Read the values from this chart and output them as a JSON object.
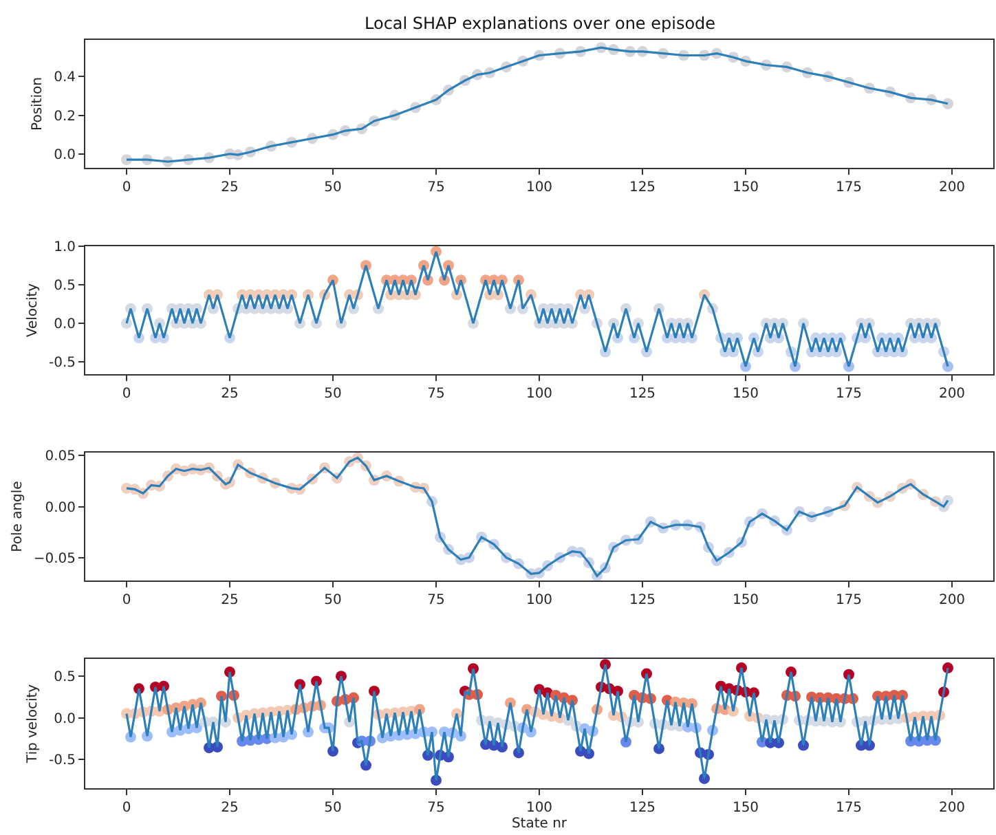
{
  "chart_data": [
    {
      "type": "line",
      "title": "Local SHAP explanations over one episode",
      "ylabel": "Position",
      "xlim": [
        -10,
        210
      ],
      "xticks": [
        0,
        25,
        50,
        75,
        100,
        125,
        150,
        175,
        200
      ],
      "ylim": [
        -0.072,
        0.59
      ],
      "yticks": [
        {
          "value": 0,
          "label": "0.0"
        },
        0.2,
        0.4
      ],
      "marker": "circle",
      "line_style": "solid",
      "series": [
        {
          "x": [
            0,
            5,
            10,
            15,
            20,
            25,
            27,
            30,
            35,
            40,
            45,
            50,
            53,
            57,
            60,
            65,
            70,
            75,
            78,
            82,
            85,
            88,
            92,
            96,
            100,
            105,
            110,
            115,
            118,
            122,
            125,
            130,
            135,
            140,
            143,
            147,
            150,
            155,
            160,
            165,
            170,
            175,
            180,
            185,
            190,
            195,
            199
          ],
          "values": [
            -0.03,
            -0.03,
            -0.04,
            -0.03,
            -0.02,
            0.0,
            -0.005,
            0.01,
            0.04,
            0.06,
            0.08,
            0.1,
            0.12,
            0.13,
            0.17,
            0.2,
            0.24,
            0.28,
            0.33,
            0.38,
            0.41,
            0.42,
            0.45,
            0.48,
            0.51,
            0.52,
            0.53,
            0.55,
            0.54,
            0.53,
            0.53,
            0.52,
            0.51,
            0.51,
            0.52,
            0.5,
            0.48,
            0.46,
            0.45,
            0.42,
            0.4,
            0.37,
            0.34,
            0.32,
            0.29,
            0.28,
            0.26
          ],
          "color": "#2d7fb8",
          "colors": [
            "#d3d5da",
            "#d3d5da",
            "#d3d5da",
            "#d3d5da",
            "#d3d5da",
            "#d3d5da",
            "#d3d5da",
            "#d3d5da",
            "#d3d5da",
            "#d3d5da",
            "#d3d5da",
            "#d3d5da",
            "#d3d5da",
            "#d3d5da",
            "#d3d5da",
            "#d3d5da",
            "#d3d5da",
            "#d3d5da",
            "#d3d5da",
            "#d3d5da",
            "#d3d5da",
            "#d3d5da",
            "#d3d5da",
            "#d3d5da",
            "#d3d5da",
            "#d3d5da",
            "#d3d5da",
            "#d3d5da",
            "#d3d5da",
            "#d3d5da",
            "#d3d5da",
            "#d3d5da",
            "#d3d5da",
            "#d3d5da",
            "#d3d5da",
            "#d3d5da",
            "#d3d5da",
            "#d3d5da",
            "#d3d5da",
            "#d3d5da",
            "#d3d5da",
            "#d3d5da",
            "#d3d5da",
            "#d3d5da",
            "#d3d5da",
            "#d3d5da",
            "#d3d5da"
          ]
        }
      ]
    },
    {
      "type": "line",
      "ylabel": "Velocity",
      "xlim": [
        -10,
        210
      ],
      "xticks": [
        0,
        25,
        50,
        75,
        100,
        125,
        150,
        175,
        200
      ],
      "ylim": [
        -0.66,
        1.0
      ],
      "yticks": [
        -0.5,
        {
          "value": 0,
          "label": "0.0"
        },
        0.5,
        {
          "value": 1,
          "label": "1.0"
        }
      ],
      "marker": "circle",
      "line_style": "solid",
      "series": [
        {
          "x": [
            0,
            1,
            3,
            5,
            7,
            8,
            9,
            11,
            12,
            13,
            14,
            15,
            16,
            17,
            18,
            20,
            21,
            22,
            25,
            27,
            28,
            29,
            30,
            31,
            32,
            33,
            34,
            35,
            36,
            37,
            38,
            39,
            40,
            42,
            44,
            46,
            48,
            50,
            52,
            54,
            55,
            56,
            58,
            61,
            63,
            64,
            65,
            66,
            67,
            68,
            69,
            70,
            72,
            73,
            75,
            77,
            78,
            80,
            81,
            84,
            87,
            88,
            89,
            90,
            91,
            93,
            95,
            96,
            98,
            100,
            101,
            102,
            103,
            104,
            105,
            106,
            107,
            108,
            110,
            111,
            112,
            114,
            116,
            118,
            119,
            121,
            123,
            124,
            126,
            129,
            131,
            132,
            133,
            134,
            135,
            136,
            137,
            140,
            142,
            144,
            145,
            146,
            147,
            148,
            150,
            152,
            153,
            155,
            156,
            157,
            158,
            159,
            161,
            162,
            164,
            166,
            167,
            168,
            169,
            170,
            171,
            172,
            173,
            175,
            177,
            178,
            179,
            180,
            182,
            183,
            184,
            185,
            186,
            187,
            188,
            190,
            191,
            192,
            193,
            194,
            195,
            196,
            198,
            199
          ],
          "values": [
            0,
            0.19,
            -0.19,
            0.19,
            -0.19,
            0,
            -0.19,
            0.19,
            0,
            0.19,
            0,
            0.19,
            0,
            0.19,
            0,
            0.37,
            0.19,
            0.37,
            -0.19,
            0.19,
            0.37,
            0.19,
            0.37,
            0.19,
            0.37,
            0.19,
            0.37,
            0.19,
            0.37,
            0.19,
            0.37,
            0.19,
            0.37,
            0,
            0.37,
            0,
            0.37,
            0.56,
            0,
            0.37,
            0.19,
            0.37,
            0.75,
            0.19,
            0.56,
            0.37,
            0.56,
            0.37,
            0.56,
            0.37,
            0.56,
            0.37,
            0.75,
            0.56,
            0.93,
            0.56,
            0.75,
            0.37,
            0.56,
            0,
            0.56,
            0.37,
            0.56,
            0.37,
            0.56,
            0.19,
            0.56,
            0.19,
            0.37,
            0,
            0.19,
            0,
            0.19,
            0,
            0.19,
            0,
            0.19,
            0,
            0.37,
            0.19,
            0.37,
            0,
            -0.37,
            0,
            -0.19,
            0.19,
            -0.19,
            0,
            -0.37,
            0.19,
            -0.19,
            0,
            -0.19,
            0,
            -0.19,
            0,
            -0.19,
            0.37,
            0.19,
            -0.19,
            -0.37,
            -0.19,
            -0.37,
            -0.19,
            -0.56,
            -0.19,
            -0.37,
            0,
            -0.19,
            0,
            -0.19,
            0,
            -0.37,
            -0.56,
            0,
            -0.37,
            -0.19,
            -0.37,
            -0.19,
            -0.37,
            -0.19,
            -0.37,
            -0.19,
            -0.56,
            -0.19,
            0,
            -0.19,
            0,
            -0.37,
            -0.19,
            -0.37,
            -0.19,
            -0.37,
            -0.19,
            -0.37,
            0,
            -0.19,
            0,
            -0.19,
            0,
            -0.19,
            0,
            -0.37,
            -0.56
          ],
          "color": "#2d7fb8",
          "colors": [
            "#d5dbe5",
            "#d5dbe5",
            "#c8d5ee",
            "#d5dbe5",
            "#c8d5ee",
            "#d5dbe5",
            "#c8d5ee",
            "#d5dbe5",
            "#d5dbe5",
            "#d5dbe5",
            "#d5dbe5",
            "#d5dbe5",
            "#d5dbe5",
            "#d5dbe5",
            "#d5dbe5",
            "#f1ccb8",
            "#d5dbe5",
            "#f1ccb8",
            "#c8d5ee",
            "#d5dbe5",
            "#f1ccb8",
            "#d5dbe5",
            "#f1ccb8",
            "#d5dbe5",
            "#f1ccb8",
            "#d5dbe5",
            "#f1ccb8",
            "#d5dbe5",
            "#f1ccb8",
            "#d5dbe5",
            "#f1ccb8",
            "#d5dbe5",
            "#f1ccb8",
            "#d5dbe5",
            "#f1ccb8",
            "#d5dbe5",
            "#f1ccb8",
            "#f2a586",
            "#d5dbe5",
            "#f1ccb8",
            "#d5dbe5",
            "#f1ccb8",
            "#f2a586",
            "#d5dbe5",
            "#f2a586",
            "#f1ccb8",
            "#f2a586",
            "#f1ccb8",
            "#f2a586",
            "#f1ccb8",
            "#f2a586",
            "#f1ccb8",
            "#f2a586",
            "#f2a586",
            "#f2a586",
            "#f2a586",
            "#f2a586",
            "#f1ccb8",
            "#f2a586",
            "#d5dbe5",
            "#f2a586",
            "#f1ccb8",
            "#f2a586",
            "#f1ccb8",
            "#f2a586",
            "#d5dbe5",
            "#f2a586",
            "#d5dbe5",
            "#f1ccb8",
            "#d5dbe5",
            "#d5dbe5",
            "#d5dbe5",
            "#d5dbe5",
            "#d5dbe5",
            "#d5dbe5",
            "#d5dbe5",
            "#d5dbe5",
            "#d5dbe5",
            "#f1ccb8",
            "#d5dbe5",
            "#f1ccb8",
            "#d5dbe5",
            "#c8d5ee",
            "#d5dbe5",
            "#c8d5ee",
            "#d5dbe5",
            "#c8d5ee",
            "#d5dbe5",
            "#c8d5ee",
            "#d5dbe5",
            "#c8d5ee",
            "#d5dbe5",
            "#c8d5ee",
            "#d5dbe5",
            "#c8d5ee",
            "#d5dbe5",
            "#c8d5ee",
            "#f1ccb8",
            "#d5dbe5",
            "#c8d5ee",
            "#c8d5ee",
            "#c8d5ee",
            "#c8d5ee",
            "#c8d5ee",
            "#a6c0f0",
            "#c8d5ee",
            "#c8d5ee",
            "#d5dbe5",
            "#c8d5ee",
            "#d5dbe5",
            "#c8d5ee",
            "#d5dbe5",
            "#c8d5ee",
            "#a6c0f0",
            "#d5dbe5",
            "#c8d5ee",
            "#c8d5ee",
            "#c8d5ee",
            "#c8d5ee",
            "#c8d5ee",
            "#c8d5ee",
            "#c8d5ee",
            "#c8d5ee",
            "#a6c0f0",
            "#c8d5ee",
            "#d5dbe5",
            "#c8d5ee",
            "#d5dbe5",
            "#c8d5ee",
            "#c8d5ee",
            "#c8d5ee",
            "#c8d5ee",
            "#c8d5ee",
            "#c8d5ee",
            "#c8d5ee",
            "#d5dbe5",
            "#c8d5ee",
            "#d5dbe5",
            "#c8d5ee",
            "#d5dbe5",
            "#c8d5ee",
            "#d5dbe5",
            "#c8d5ee",
            "#a6c0f0"
          ]
        }
      ]
    },
    {
      "type": "line",
      "ylabel": "Pole angle",
      "xlim": [
        -10,
        210
      ],
      "xticks": [
        0,
        25,
        50,
        75,
        100,
        125,
        150,
        175,
        200
      ],
      "ylim": [
        -0.0725,
        0.053
      ],
      "yticks": [
        {
          "value": -0.05,
          "label": "−0.05"
        },
        {
          "value": 0,
          "label": "0.00"
        },
        {
          "value": 0.05,
          "label": "0.05"
        }
      ],
      "marker": "circle",
      "line_style": "solid",
      "series": [
        {
          "x": [
            0,
            2,
            4,
            6,
            8,
            10,
            12,
            14,
            16,
            18,
            20,
            22,
            24,
            25,
            27,
            30,
            33,
            36,
            40,
            42,
            45,
            48,
            51,
            54,
            56,
            58,
            60,
            63,
            66,
            70,
            72,
            74,
            76,
            78,
            81,
            83,
            86,
            89,
            92,
            95,
            98,
            100,
            102,
            105,
            108,
            110,
            112,
            114,
            116,
            118,
            121,
            124,
            127,
            130,
            133,
            136,
            139,
            141,
            143,
            146,
            149,
            151,
            154,
            157,
            160,
            163,
            166,
            170,
            174,
            177,
            180,
            182,
            185,
            188,
            190,
            193,
            196,
            198,
            199
          ],
          "values": [
            0.018,
            0.017,
            0.013,
            0.021,
            0.02,
            0.03,
            0.037,
            0.035,
            0.037,
            0.036,
            0.038,
            0.03,
            0.022,
            0.024,
            0.041,
            0.033,
            0.028,
            0.023,
            0.018,
            0.017,
            0.027,
            0.038,
            0.028,
            0.044,
            0.048,
            0.04,
            0.026,
            0.03,
            0.025,
            0.019,
            0.018,
            0.005,
            -0.03,
            -0.042,
            -0.052,
            -0.05,
            -0.03,
            -0.037,
            -0.05,
            -0.056,
            -0.066,
            -0.065,
            -0.058,
            -0.05,
            -0.044,
            -0.045,
            -0.055,
            -0.068,
            -0.06,
            -0.04,
            -0.033,
            -0.032,
            -0.015,
            -0.021,
            -0.018,
            -0.018,
            -0.02,
            -0.04,
            -0.053,
            -0.045,
            -0.035,
            -0.015,
            -0.007,
            -0.014,
            -0.023,
            -0.005,
            -0.01,
            -0.005,
            0.001,
            0.019,
            0.01,
            0.004,
            0.01,
            0.018,
            0.022,
            0.012,
            0.005,
            0.0,
            0.006
          ],
          "color": "#2d7fb8",
          "colors": [
            "#efcfc0",
            "#efcfc0",
            "#efcfc0",
            "#efcfc0",
            "#efcfc0",
            "#efcfc0",
            "#efcfc0",
            "#efcfc0",
            "#efcfc0",
            "#efcfc0",
            "#efcfc0",
            "#efcfc0",
            "#efcfc0",
            "#efcfc0",
            "#efcfc0",
            "#efcfc0",
            "#efcfc0",
            "#efcfc0",
            "#efcfc0",
            "#efcfc0",
            "#efcfc0",
            "#efcfc0",
            "#efcfc0",
            "#efcfc0",
            "#efcfc0",
            "#efcfc0",
            "#efcfc0",
            "#efcfc0",
            "#efcfc0",
            "#efcfc0",
            "#efcfc0",
            "#c9d4ea",
            "#c9d4ea",
            "#c9d4ea",
            "#c9d4ea",
            "#c9d4ea",
            "#c9d4ea",
            "#c9d4ea",
            "#c9d4ea",
            "#c9d4ea",
            "#c9d4ea",
            "#c9d4ea",
            "#c9d4ea",
            "#c9d4ea",
            "#c9d4ea",
            "#c9d4ea",
            "#c9d4ea",
            "#c9d4ea",
            "#c9d4ea",
            "#c9d4ea",
            "#c9d4ea",
            "#c9d4ea",
            "#c9d4ea",
            "#c9d4ea",
            "#c9d4ea",
            "#c9d4ea",
            "#c9d4ea",
            "#c9d4ea",
            "#c9d4ea",
            "#c9d4ea",
            "#c9d4ea",
            "#c9d4ea",
            "#c9d4ea",
            "#c9d4ea",
            "#c9d4ea",
            "#c9d4ea",
            "#c9d4ea",
            "#c9d4ea",
            "#ead3c8",
            "#ead3c8",
            "#ead3c8",
            "#ead3c8",
            "#ead3c8",
            "#ead3c8",
            "#ead3c8",
            "#ead3c8",
            "#ead3c8",
            "#d5dbe5",
            "#d5dbe5"
          ]
        }
      ]
    },
    {
      "type": "line",
      "ylabel": "Tip velocity",
      "xlabel": "State nr",
      "xlim": [
        -10,
        210
      ],
      "xticks": [
        0,
        25,
        50,
        75,
        100,
        125,
        150,
        175,
        200
      ],
      "ylim": [
        -0.846,
        0.708
      ],
      "yticks": [
        -0.5,
        {
          "value": 0,
          "label": "0.0"
        },
        0.5
      ],
      "marker": "circle",
      "line_style": "solid",
      "series": [
        {
          "x": [
            0,
            1,
            2,
            3,
            4,
            5,
            6,
            7,
            8,
            9,
            10,
            11,
            12,
            13,
            14,
            15,
            16,
            17,
            18,
            19,
            20,
            21,
            22,
            23,
            24,
            25,
            26,
            27,
            28,
            29,
            30,
            31,
            32,
            33,
            34,
            35,
            36,
            37,
            38,
            39,
            40,
            41,
            42,
            43,
            44,
            45,
            46,
            47,
            48,
            49,
            50,
            51,
            52,
            53,
            54,
            55,
            56,
            57,
            58,
            59,
            60,
            61,
            62,
            63,
            64,
            65,
            66,
            67,
            68,
            69,
            70,
            71,
            72,
            73,
            74,
            75,
            76,
            77,
            78,
            79,
            80,
            81,
            82,
            83,
            84,
            85,
            86,
            87,
            88,
            89,
            90,
            91,
            92,
            93,
            94,
            95,
            96,
            97,
            98,
            99,
            100,
            101,
            102,
            103,
            104,
            105,
            106,
            107,
            108,
            109,
            110,
            111,
            112,
            113,
            114,
            115,
            116,
            117,
            118,
            119,
            120,
            121,
            122,
            123,
            124,
            125,
            126,
            127,
            128,
            129,
            130,
            131,
            132,
            133,
            134,
            135,
            136,
            137,
            138,
            139,
            140,
            141,
            142,
            143,
            144,
            145,
            146,
            147,
            148,
            149,
            150,
            151,
            152,
            153,
            154,
            155,
            156,
            157,
            158,
            159,
            160,
            161,
            162,
            163,
            164,
            165,
            166,
            167,
            168,
            169,
            170,
            171,
            172,
            173,
            174,
            175,
            176,
            177,
            178,
            179,
            180,
            181,
            182,
            183,
            184,
            185,
            186,
            187,
            188,
            189,
            190,
            191,
            192,
            193,
            194,
            195,
            196,
            197,
            198,
            199
          ],
          "values": [
            0.05,
            -0.23,
            0.05,
            0.35,
            0.07,
            -0.22,
            0.08,
            0.37,
            0.08,
            0.38,
            0.1,
            -0.17,
            0.12,
            -0.15,
            0.14,
            -0.13,
            0.16,
            -0.12,
            0.18,
            -0.05,
            -0.36,
            -0.05,
            -0.35,
            0.26,
            -0.05,
            0.55,
            0.27,
            0.0,
            -0.28,
            0.03,
            -0.27,
            0.05,
            -0.26,
            0.06,
            -0.25,
            0.07,
            -0.24,
            0.08,
            -0.23,
            0.09,
            -0.2,
            0.1,
            0.4,
            0.12,
            -0.17,
            0.14,
            0.44,
            0.15,
            -0.12,
            -0.12,
            -0.4,
            0.2,
            0.5,
            0.22,
            -0.05,
            0.24,
            -0.3,
            -0.28,
            -0.57,
            -0.28,
            0.32,
            0.04,
            -0.24,
            0.05,
            -0.22,
            0.06,
            -0.21,
            0.07,
            -0.2,
            0.08,
            -0.19,
            0.1,
            -0.17,
            -0.45,
            -0.17,
            -0.75,
            -0.45,
            -0.17,
            -0.47,
            -0.18,
            0.05,
            -0.22,
            0.32,
            0.28,
            0.59,
            0.28,
            -0.03,
            -0.32,
            -0.04,
            -0.33,
            -0.06,
            -0.35,
            -0.08,
            0.18,
            -0.1,
            -0.42,
            -0.12,
            0.1,
            -0.17,
            0.07,
            0.34,
            0.04,
            0.3,
            0.02,
            0.27,
            0.0,
            0.24,
            -0.03,
            0.21,
            -0.1,
            -0.4,
            -0.13,
            -0.43,
            -0.16,
            0.1,
            0.37,
            0.64,
            0.35,
            0.03,
            0.32,
            0.01,
            -0.29,
            -0.05,
            0.27,
            -0.05,
            0.24,
            0.53,
            0.23,
            -0.07,
            -0.37,
            -0.08,
            0.21,
            -0.09,
            0.19,
            -0.1,
            0.18,
            -0.11,
            0.17,
            -0.12,
            -0.42,
            -0.73,
            -0.44,
            -0.15,
            0.11,
            0.38,
            0.1,
            0.35,
            0.08,
            0.33,
            0.6,
            0.31,
            0.02,
            0.3,
            0.0,
            -0.29,
            -0.02,
            -0.3,
            -0.03,
            -0.3,
            -0.02,
            0.27,
            0.55,
            0.26,
            -0.03,
            -0.33,
            -0.03,
            0.25,
            -0.04,
            0.24,
            -0.04,
            0.24,
            -0.05,
            0.23,
            -0.05,
            0.23,
            0.52,
            0.23,
            -0.05,
            -0.33,
            -0.04,
            -0.33,
            -0.03,
            0.26,
            -0.02,
            0.26,
            -0.02,
            0.27,
            -0.01,
            0.27,
            0.0,
            -0.28,
            0.01,
            -0.28,
            0.02,
            -0.27,
            0.02,
            -0.27,
            0.03,
            0.31,
            0.6
          ],
          "color": "#2d7fb8",
          "colors": [
            "#f3c9b4",
            "#9dbdfc",
            "#f3c9b4",
            "#b40426",
            "#f3c9b4",
            "#9dbdfc",
            "#f3c9b4",
            "#b40426",
            "#f3c9b4",
            "#b40426",
            "#f0a586",
            "#9dbdfc",
            "#f0a586",
            "#9dbdfc",
            "#f0a586",
            "#9dbdfc",
            "#f0a586",
            "#9dbdfc",
            "#f0a586",
            "#d5dbe5",
            "#3b4cc0",
            "#d5dbe5",
            "#3b4cc0",
            "#dd5f4b",
            "#d5dbe5",
            "#b40426",
            "#dd5f4b",
            "#f3c9b4",
            "#6788ee",
            "#f3c9b4",
            "#6788ee",
            "#f3c9b4",
            "#6788ee",
            "#f3c9b4",
            "#6788ee",
            "#f3c9b4",
            "#9dbdfc",
            "#f3c9b4",
            "#9dbdfc",
            "#f3c9b4",
            "#9dbdfc",
            "#f0a586",
            "#b40426",
            "#f0a586",
            "#9dbdfc",
            "#f0a586",
            "#b40426",
            "#f0a586",
            "#9dbdfc",
            "#9dbdfc",
            "#3b4cc0",
            "#dd5f4b",
            "#b40426",
            "#dd5f4b",
            "#d5dbe5",
            "#dd5f4b",
            "#3b4cc0",
            "#6788ee",
            "#3b4cc0",
            "#6788ee",
            "#b40426",
            "#f3c9b4",
            "#9dbdfc",
            "#f3c9b4",
            "#9dbdfc",
            "#f3c9b4",
            "#9dbdfc",
            "#f3c9b4",
            "#9dbdfc",
            "#f3c9b4",
            "#9dbdfc",
            "#f0a586",
            "#9dbdfc",
            "#3b4cc0",
            "#9dbdfc",
            "#3b4cc0",
            "#3b4cc0",
            "#9dbdfc",
            "#3b4cc0",
            "#9dbdfc",
            "#f3c9b4",
            "#9dbdfc",
            "#b40426",
            "#dd5f4b",
            "#b40426",
            "#dd5f4b",
            "#d5dbe5",
            "#3b4cc0",
            "#d5dbe5",
            "#3b4cc0",
            "#d5dbe5",
            "#3b4cc0",
            "#d5dbe5",
            "#f0a586",
            "#d5dbe5",
            "#3b4cc0",
            "#9dbdfc",
            "#f0a586",
            "#9dbdfc",
            "#f3c9b4",
            "#b40426",
            "#f3c9b4",
            "#b40426",
            "#f3c9b4",
            "#dd5f4b",
            "#f3c9b4",
            "#dd5f4b",
            "#d5dbe5",
            "#dd5f4b",
            "#d5dbe5",
            "#3b4cc0",
            "#9dbdfc",
            "#3b4cc0",
            "#9dbdfc",
            "#f0a586",
            "#b40426",
            "#b40426",
            "#b40426",
            "#f3c9b4",
            "#b40426",
            "#f3c9b4",
            "#6788ee",
            "#d5dbe5",
            "#dd5f4b",
            "#d5dbe5",
            "#dd5f4b",
            "#b40426",
            "#dd5f4b",
            "#d5dbe5",
            "#3b4cc0",
            "#d5dbe5",
            "#dd5f4b",
            "#d5dbe5",
            "#f0a586",
            "#d5dbe5",
            "#f0a586",
            "#9dbdfc",
            "#f0a586",
            "#9dbdfc",
            "#3b4cc0",
            "#3b4cc0",
            "#3b4cc0",
            "#9dbdfc",
            "#f0a586",
            "#b40426",
            "#f0a586",
            "#b40426",
            "#f3c9b4",
            "#b40426",
            "#b40426",
            "#b40426",
            "#f3c9b4",
            "#b40426",
            "#f3c9b4",
            "#6788ee",
            "#d5dbe5",
            "#3b4cc0",
            "#d5dbe5",
            "#3b4cc0",
            "#d5dbe5",
            "#dd5f4b",
            "#b40426",
            "#dd5f4b",
            "#d5dbe5",
            "#3b4cc0",
            "#d5dbe5",
            "#dd5f4b",
            "#d5dbe5",
            "#dd5f4b",
            "#d5dbe5",
            "#dd5f4b",
            "#d5dbe5",
            "#dd5f4b",
            "#d5dbe5",
            "#dd5f4b",
            "#b40426",
            "#dd5f4b",
            "#d5dbe5",
            "#3b4cc0",
            "#d5dbe5",
            "#3b4cc0",
            "#d5dbe5",
            "#dd5f4b",
            "#d5dbe5",
            "#dd5f4b",
            "#d5dbe5",
            "#dd5f4b",
            "#d5dbe5",
            "#dd5f4b",
            "#f3c9b4",
            "#6788ee",
            "#f3c9b4",
            "#6788ee",
            "#f3c9b4",
            "#6788ee",
            "#f3c9b4",
            "#6788ee",
            "#f3c9b4",
            "#b40426",
            "#b40426"
          ]
        }
      ]
    }
  ]
}
